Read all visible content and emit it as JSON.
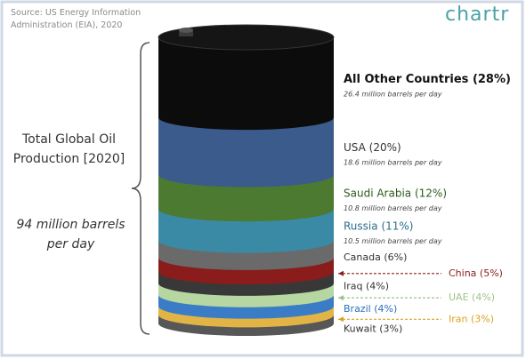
{
  "chart_data": {
    "type": "barrel",
    "source": "Source: US Energy Information Administration (EIA), 2020",
    "logo": "chartr",
    "title": "Total Global Oil Production [2020]",
    "total": {
      "value": 94,
      "label": "94 million barrels per day"
    },
    "categories": [
      "All Other Countries",
      "USA",
      "Saudi Arabia",
      "Russia",
      "Canada",
      "China",
      "Iraq",
      "UAE",
      "Brazil",
      "Iran",
      "Kuwait"
    ],
    "values": [
      28,
      20,
      12,
      11,
      6,
      5,
      4,
      4,
      4,
      3,
      3
    ],
    "value_labels": [
      "(28%)",
      "(20%)",
      "(12%)",
      "(11%)",
      "(6%)",
      "(5%)",
      "(4%)",
      "(4%)",
      "(4%)",
      "(3%)",
      "(3%)"
    ],
    "colors": [
      "#0c0c0c",
      "#3b5b8c",
      "#4b7a30",
      "#3a8aa6",
      "#6a6a6a",
      "#8a1c1c",
      "#383838",
      "#b6d6a2",
      "#3a7cc6",
      "#e2b445",
      "#575757"
    ],
    "label_colors": [
      "#111111",
      "#333333",
      "#2f5a1a",
      "#2a6f8a",
      "#333333",
      "#8a1c1c",
      "#333333",
      "#9cc48a",
      "#2a6fb8",
      "#d9a21e",
      "#333333"
    ],
    "barrels": [
      {
        "value": 26.4,
        "label": "26.4 million barrels per day"
      },
      {
        "value": 18.6,
        "label": "18.6 million barrels per day"
      },
      {
        "value": 10.8,
        "label": "10.8 million barrels per day"
      },
      {
        "value": 10.5,
        "label": "10.5 million barrels per day"
      }
    ]
  }
}
